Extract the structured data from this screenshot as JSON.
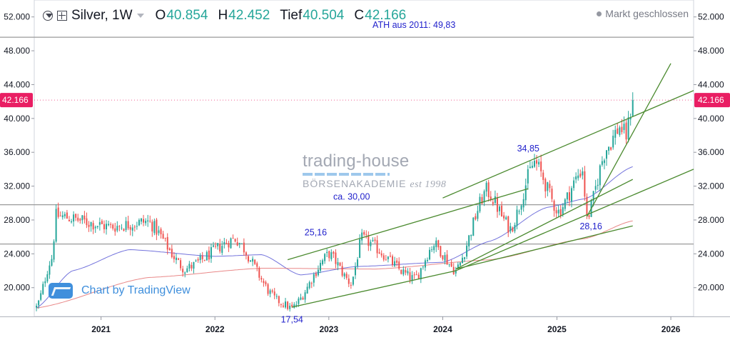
{
  "header": {
    "symbol": "Silver, 1W",
    "open_label": "O",
    "open": "40.854",
    "high_label": "H",
    "high": "42.452",
    "low_label": "Tief",
    "low": "40.504",
    "close_label": "C",
    "close": "42.166",
    "market_status": "Markt geschlossen"
  },
  "watermark": {
    "text": "Chart by TradingView"
  },
  "brand": {
    "line1": "trading-house",
    "line2": "BÖRSENAKADEMIE",
    "line3": "est 1998"
  },
  "colors": {
    "up": "#26a69a",
    "down": "#ef5350",
    "trendline": "#4caf50",
    "ma_fast": "#5b5bd6",
    "ma_slow": "#e57373",
    "price_tag": "#e91e63",
    "annotation": "#2222cc"
  },
  "chart_data": {
    "type": "candlestick",
    "y_axis": {
      "ticks": [
        "52.000",
        "48.000",
        "44.000",
        "40.000",
        "36.000",
        "32.000",
        "28.000",
        "24.000",
        "20.000"
      ],
      "range": [
        16.6,
        54.0
      ],
      "last_price": "42.166"
    },
    "x_axis": {
      "ticks": [
        "2021",
        "2022",
        "2023",
        "2024",
        "2025",
        "2026"
      ],
      "range": [
        "2020-06-01",
        "2026-03-15"
      ]
    },
    "series": [
      {
        "name": "Silver, 1W",
        "type": "candlestick",
        "key_points": [
          [
            "2020-06-08",
            17.7
          ],
          [
            "2020-07-27",
            23.5
          ],
          [
            "2020-08-10",
            28.5
          ],
          [
            "2021-02-01",
            27.2
          ],
          [
            "2021-06-01",
            27.8
          ],
          [
            "2021-09-27",
            22.2
          ],
          [
            "2022-03-07",
            25.8
          ],
          [
            "2022-07-18",
            18.5
          ],
          [
            "2022-09-05",
            17.54
          ],
          [
            "2023-01-02",
            24.0
          ],
          [
            "2023-03-13",
            20.5
          ],
          [
            "2023-04-17",
            25.8
          ],
          [
            "2023-10-02",
            21.0
          ],
          [
            "2023-12-04",
            25.2
          ],
          [
            "2024-02-12",
            22.0
          ],
          [
            "2024-05-20",
            31.5
          ],
          [
            "2024-08-05",
            27.0
          ],
          [
            "2024-10-21",
            34.85
          ],
          [
            "2025-01-06",
            29.0
          ],
          [
            "2025-03-24",
            34.0
          ],
          [
            "2025-04-07",
            28.16
          ],
          [
            "2025-06-09",
            36.5
          ],
          [
            "2025-07-21",
            39.0
          ],
          [
            "2025-08-11",
            38.0
          ],
          [
            "2025-09-01",
            42.166
          ]
        ]
      },
      {
        "type": "moving-average",
        "key_points": [
          [
            "2020-06-08",
            17.6
          ],
          [
            "2020-10-01",
            22.0
          ],
          [
            "2021-04-01",
            24.5
          ],
          [
            "2022-01-01",
            23.7
          ],
          [
            "2022-06-01",
            23.9
          ],
          [
            "2022-10-01",
            21.5
          ],
          [
            "2023-04-01",
            22.5
          ],
          [
            "2024-01-01",
            23.0
          ],
          [
            "2024-06-01",
            25.5
          ],
          [
            "2024-12-01",
            29.5
          ],
          [
            "2025-04-01",
            30.5
          ],
          [
            "2025-09-01",
            34.3
          ]
        ]
      },
      {
        "type": "moving-average",
        "key_points": [
          [
            "2020-06-08",
            17.6
          ],
          [
            "2021-06-01",
            21.2
          ],
          [
            "2022-06-01",
            22.3
          ],
          [
            "2023-06-01",
            22.2
          ],
          [
            "2024-06-01",
            23.3
          ],
          [
            "2025-04-01",
            25.8
          ],
          [
            "2025-09-01",
            27.9
          ]
        ]
      }
    ],
    "horizontal_lines": [
      {
        "price": 49.6
      },
      {
        "price": 29.8
      },
      {
        "price": 25.16
      }
    ],
    "trend_lines": [
      [
        "2022-08-22",
        23.3,
        "2024-10-01",
        31.7
      ],
      [
        "2022-09-05",
        17.7,
        "2024-02-12",
        22.0
      ],
      [
        "2024-02-12",
        22.0,
        "2025-03-24",
        28.4
      ],
      [
        "2025-03-24",
        28.4,
        "2026-03-15",
        34.0
      ],
      [
        "2024-02-12",
        22.2,
        "2025-09-01",
        27.3
      ],
      [
        "2024-02-12",
        22.2,
        "2025-09-01",
        32.8
      ],
      [
        "2024-01-01",
        30.6,
        "2026-03-15",
        43.3
      ],
      [
        "2025-04-07",
        28.4,
        "2026-01-01",
        46.5
      ]
    ],
    "annotations": [
      {
        "text": "ATH aus 2011: 49,83",
        "date": "2023-10-01",
        "price": 50.7
      },
      {
        "text": "ca. 30,00",
        "date": "2023-03-15",
        "price": 30.4
      },
      {
        "text": "25,16",
        "date": "2022-11-20",
        "price": 26.2
      },
      {
        "text": "34,85",
        "date": "2024-10-01",
        "price": 36.1
      },
      {
        "text": "28,16",
        "date": "2025-04-20",
        "price": 26.9
      },
      {
        "text": "17,54",
        "date": "2022-09-05",
        "price": 15.9
      }
    ]
  }
}
